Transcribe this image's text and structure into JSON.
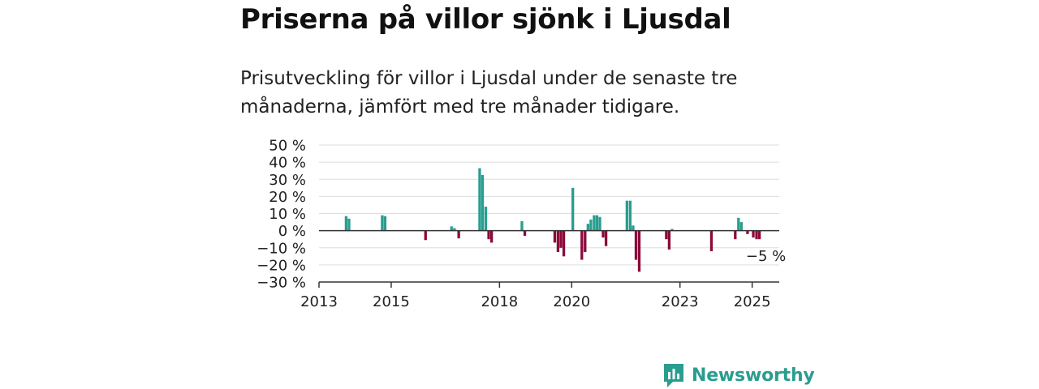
{
  "headline": "Priserna på villor sjönk i Ljusdal",
  "subtitle": "Prisutveckling för villor i Ljusdal under de senaste tre månaderna, jämfört med tre månader tidigare.",
  "brand": {
    "name": "Newsworthy",
    "icon": "newsworthy-logo-icon",
    "color": "#2a9d8f"
  },
  "chart_data": {
    "type": "bar",
    "y_unit": "%",
    "ylim": [
      -30,
      50
    ],
    "y_ticks": [
      50,
      40,
      30,
      20,
      10,
      0,
      -10,
      -20,
      -30
    ],
    "y_tick_labels": [
      "50 %",
      "40 %",
      "30 %",
      "20 %",
      "10 %",
      "0 %",
      "−10 %",
      "−20 %",
      "−30 %"
    ],
    "x_ticks": [
      2013,
      2015,
      2018,
      2020,
      2023,
      2025
    ],
    "xlim": [
      2013.0,
      2025.75
    ],
    "grid": true,
    "colors": {
      "positive": "#2a9d8f",
      "negative": "#8b0a3a"
    },
    "annotation": {
      "text": "−5 %",
      "x": 2025.2,
      "y": -5
    },
    "series": [
      {
        "x": 2013.75,
        "y": 8.5
      },
      {
        "x": 2013.83,
        "y": 7
      },
      {
        "x": 2014.75,
        "y": 9
      },
      {
        "x": 2014.83,
        "y": 8.5
      },
      {
        "x": 2015.95,
        "y": -5.5
      },
      {
        "x": 2016.67,
        "y": 2.5
      },
      {
        "x": 2016.75,
        "y": 1.5
      },
      {
        "x": 2016.87,
        "y": -4.5
      },
      {
        "x": 2017.45,
        "y": 36.5
      },
      {
        "x": 2017.53,
        "y": 32.5
      },
      {
        "x": 2017.62,
        "y": 14
      },
      {
        "x": 2017.7,
        "y": -5
      },
      {
        "x": 2017.78,
        "y": -7
      },
      {
        "x": 2018.62,
        "y": 5.5
      },
      {
        "x": 2018.7,
        "y": -3
      },
      {
        "x": 2019.53,
        "y": -7
      },
      {
        "x": 2019.62,
        "y": -12.5
      },
      {
        "x": 2019.7,
        "y": -10
      },
      {
        "x": 2019.78,
        "y": -15
      },
      {
        "x": 2020.03,
        "y": 25
      },
      {
        "x": 2020.28,
        "y": -17
      },
      {
        "x": 2020.37,
        "y": -12.5
      },
      {
        "x": 2020.45,
        "y": 4
      },
      {
        "x": 2020.53,
        "y": 6.5
      },
      {
        "x": 2020.62,
        "y": 9
      },
      {
        "x": 2020.7,
        "y": 9
      },
      {
        "x": 2020.78,
        "y": 8
      },
      {
        "x": 2020.87,
        "y": -4
      },
      {
        "x": 2020.95,
        "y": -9
      },
      {
        "x": 2021.53,
        "y": 17.5
      },
      {
        "x": 2021.62,
        "y": 17.5
      },
      {
        "x": 2021.7,
        "y": 3
      },
      {
        "x": 2021.78,
        "y": -17
      },
      {
        "x": 2021.87,
        "y": -24
      },
      {
        "x": 2022.62,
        "y": -5
      },
      {
        "x": 2022.7,
        "y": -11
      },
      {
        "x": 2022.78,
        "y": 1
      },
      {
        "x": 2023.87,
        "y": -12
      },
      {
        "x": 2024.53,
        "y": -5
      },
      {
        "x": 2024.62,
        "y": 7.5
      },
      {
        "x": 2024.7,
        "y": 5
      },
      {
        "x": 2024.87,
        "y": -2
      },
      {
        "x": 2025.03,
        "y": -4
      },
      {
        "x": 2025.12,
        "y": -5
      },
      {
        "x": 2025.2,
        "y": -5
      }
    ]
  }
}
